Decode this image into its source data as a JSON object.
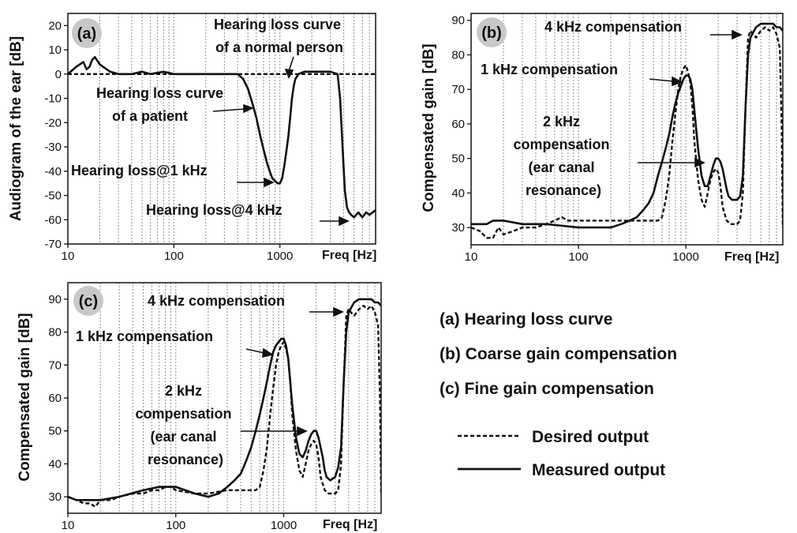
{
  "chart_data": [
    {
      "id": "a",
      "type": "line",
      "badge": "(a)",
      "ylabel": "Audiogram of the ear [dB]",
      "xlabel": "Freq [Hz]",
      "xscale": "log",
      "xlim": [
        10,
        8000
      ],
      "ylim": [
        -70,
        25
      ],
      "xticks": [
        "10",
        "100",
        "1000"
      ],
      "yticks": [
        "20",
        "10",
        "0",
        "-10",
        "-20",
        "-30",
        "-40",
        "-50",
        "-60",
        "-70"
      ],
      "series": [
        {
          "style": "dashed",
          "x": [
            10,
            8000
          ],
          "y": [
            0,
            0
          ]
        },
        {
          "style": "solid",
          "x": [
            10,
            12,
            14,
            15,
            16,
            17,
            18,
            20,
            25,
            30,
            40,
            50,
            60,
            80,
            100,
            150,
            200,
            300,
            400,
            450,
            500,
            550,
            600,
            650,
            700,
            750,
            800,
            850,
            900,
            950,
            1000,
            1050,
            1100,
            1150,
            1200,
            1250,
            1300,
            1350,
            1400,
            1500,
            1700,
            2000,
            2500,
            3000,
            3500,
            3700,
            3900,
            4100,
            4300,
            4500,
            4700,
            5000,
            5500,
            6000,
            6500,
            7000,
            7500,
            8000
          ],
          "y": [
            0,
            3,
            5,
            2,
            3,
            6,
            7,
            4,
            1,
            0,
            0,
            1,
            0,
            1,
            0,
            0,
            0,
            0,
            0,
            -2,
            -6,
            -12,
            -18,
            -25,
            -31,
            -36,
            -40,
            -43,
            -44,
            -45,
            -45,
            -43,
            -38,
            -32,
            -26,
            -18,
            -10,
            -5,
            -2,
            0,
            1,
            1,
            1,
            1,
            0,
            -10,
            -30,
            -48,
            -55,
            -57,
            -58,
            -59,
            -57,
            -59,
            -57,
            -58,
            -57,
            -56
          ]
        }
      ],
      "annotations": [
        {
          "lines": [
            "Hearing loss curve",
            "of a normal person"
          ]
        },
        {
          "lines": [
            "Hearing loss curve",
            "of a patient"
          ]
        },
        {
          "lines": [
            "Hearing loss@1 kHz"
          ]
        },
        {
          "lines": [
            "Hearing loss@4 kHz"
          ]
        }
      ]
    },
    {
      "id": "b",
      "type": "line",
      "badge": "(b)",
      "ylabel": "Compensated gain [dB]",
      "xlabel": "Freq [Hz]",
      "xscale": "log",
      "xlim": [
        10,
        8000
      ],
      "ylim": [
        25,
        92
      ],
      "xticks": [
        "10",
        "100",
        "1000"
      ],
      "yticks": [
        "90",
        "80",
        "70",
        "60",
        "50",
        "40",
        "30"
      ],
      "series": [
        {
          "name": "Desired output",
          "style": "dashed",
          "x": [
            10,
            12,
            14,
            16,
            18,
            20,
            25,
            30,
            40,
            50,
            60,
            70,
            80,
            90,
            100,
            150,
            200,
            300,
            400,
            500,
            550,
            600,
            650,
            700,
            750,
            800,
            850,
            900,
            950,
            1000,
            1050,
            1100,
            1150,
            1200,
            1300,
            1400,
            1500,
            1600,
            1700,
            1800,
            1900,
            2000,
            2100,
            2200,
            2400,
            2600,
            2800,
            3000,
            3200,
            3400,
            3600,
            3800,
            4000,
            4200,
            4500,
            5000,
            5500,
            6000,
            6500,
            7000,
            7500,
            7800,
            8000
          ],
          "y": [
            30,
            29,
            27,
            27,
            30,
            28,
            29,
            30,
            30,
            31,
            32,
            33,
            32,
            32,
            32,
            32,
            32,
            32,
            32,
            32,
            32,
            33,
            38,
            45,
            55,
            63,
            70,
            74,
            76,
            77,
            75,
            72,
            65,
            55,
            44,
            38,
            36,
            40,
            44,
            46,
            47,
            46,
            42,
            36,
            32,
            31,
            31,
            31,
            32,
            40,
            65,
            85,
            87,
            86,
            85,
            87,
            88,
            87,
            88,
            86,
            82,
            60,
            30
          ]
        },
        {
          "name": "Measured output",
          "style": "solid",
          "x": [
            10,
            12,
            14,
            16,
            20,
            30,
            50,
            100,
            150,
            200,
            250,
            300,
            350,
            400,
            450,
            500,
            550,
            600,
            650,
            700,
            750,
            800,
            850,
            900,
            950,
            1000,
            1050,
            1100,
            1150,
            1200,
            1300,
            1400,
            1500,
            1600,
            1700,
            1800,
            1900,
            2000,
            2100,
            2200,
            2300,
            2400,
            2500,
            2700,
            3000,
            3200,
            3400,
            3600,
            3800,
            4000,
            4500,
            5000,
            5500,
            6000,
            6500,
            7000,
            7500,
            8000
          ],
          "y": [
            31,
            31,
            31,
            32,
            32,
            31,
            31,
            30,
            30,
            30,
            31,
            32,
            33,
            35,
            37,
            40,
            45,
            49,
            53,
            57,
            62,
            66,
            69,
            71,
            73,
            74,
            74,
            73,
            70,
            64,
            53,
            45,
            42,
            42,
            45,
            48,
            50,
            50,
            49,
            47,
            44,
            41,
            39,
            38,
            38,
            39,
            45,
            65,
            80,
            85,
            88,
            89,
            89,
            89,
            89,
            88,
            88,
            87
          ]
        }
      ],
      "annotations": [
        {
          "lines": [
            "4 kHz compensation"
          ]
        },
        {
          "lines": [
            "1 kHz compensation"
          ]
        },
        {
          "lines": [
            "2 kHz",
            "compensation",
            "(ear canal",
            "resonance)"
          ]
        }
      ]
    },
    {
      "id": "c",
      "type": "line",
      "badge": "(c)",
      "ylabel": "Compensated gain [dB]",
      "xlabel": "Freq [Hz]",
      "xscale": "log",
      "xlim": [
        10,
        8000
      ],
      "ylim": [
        25,
        95
      ],
      "xticks": [
        "10",
        "100",
        "1000"
      ],
      "yticks": [
        "90",
        "80",
        "70",
        "60",
        "50",
        "40",
        "30"
      ],
      "series": [
        {
          "name": "Desired output",
          "style": "dashed",
          "x": [
            10,
            12,
            14,
            16,
            18,
            20,
            25,
            30,
            40,
            50,
            60,
            70,
            80,
            90,
            100,
            150,
            200,
            300,
            400,
            500,
            550,
            600,
            650,
            700,
            750,
            800,
            850,
            900,
            950,
            1000,
            1050,
            1100,
            1150,
            1200,
            1300,
            1400,
            1500,
            1600,
            1700,
            1800,
            1900,
            2000,
            2100,
            2200,
            2400,
            2600,
            2800,
            3000,
            3200,
            3400,
            3600,
            3800,
            4000,
            4200,
            4500,
            5000,
            5500,
            6000,
            6500,
            7000,
            7500,
            7800,
            8000
          ],
          "y": [
            30,
            29,
            28,
            28,
            27,
            29,
            29,
            30,
            31,
            31,
            32,
            32,
            33,
            33,
            32,
            31,
            31,
            32,
            32,
            32,
            32,
            33,
            38,
            45,
            55,
            63,
            70,
            74,
            76,
            77,
            75,
            72,
            65,
            55,
            44,
            38,
            36,
            40,
            44,
            46,
            47,
            46,
            42,
            36,
            32,
            31,
            31,
            31,
            32,
            40,
            65,
            85,
            87,
            86,
            85,
            87,
            88,
            87,
            88,
            86,
            82,
            60,
            31
          ]
        },
        {
          "name": "Measured output",
          "style": "solid",
          "x": [
            10,
            12,
            14,
            16,
            20,
            30,
            50,
            70,
            100,
            150,
            200,
            250,
            300,
            350,
            400,
            450,
            500,
            550,
            600,
            650,
            700,
            750,
            800,
            850,
            900,
            950,
            1000,
            1050,
            1100,
            1150,
            1200,
            1300,
            1400,
            1500,
            1600,
            1700,
            1800,
            1900,
            2000,
            2100,
            2200,
            2300,
            2400,
            2500,
            2700,
            3000,
            3200,
            3400,
            3600,
            3800,
            4000,
            4500,
            5000,
            5500,
            6000,
            6500,
            7000,
            7500,
            8000
          ],
          "y": [
            30,
            29,
            29,
            29,
            29,
            30,
            32,
            33,
            33,
            31,
            30,
            31,
            33,
            35,
            37,
            41,
            45,
            50,
            55,
            60,
            65,
            70,
            74,
            76,
            77,
            78,
            78,
            76,
            72,
            65,
            58,
            48,
            43,
            42,
            44,
            47,
            49,
            50,
            50,
            48,
            45,
            42,
            38,
            36,
            35,
            36,
            39,
            45,
            65,
            80,
            86,
            89,
            90,
            90,
            90,
            90,
            89,
            89,
            88
          ]
        }
      ],
      "annotations": [
        {
          "lines": [
            "4 kHz compensation"
          ]
        },
        {
          "lines": [
            "1 kHz compensation"
          ]
        },
        {
          "lines": [
            "2 kHz",
            "compensation",
            "(ear canal",
            "resonance)"
          ]
        }
      ]
    }
  ],
  "captions": [
    "(a) Hearing loss curve",
    "(b) Coarse gain compensation",
    "(c) Fine gain compensation"
  ],
  "legend": [
    {
      "label": "Desired output",
      "style": "dashed"
    },
    {
      "label": "Measured output",
      "style": "solid"
    }
  ],
  "colors": {
    "ink": "#111111",
    "badge_fill": "#c8c8c8",
    "grid": "#9a9a9a"
  }
}
